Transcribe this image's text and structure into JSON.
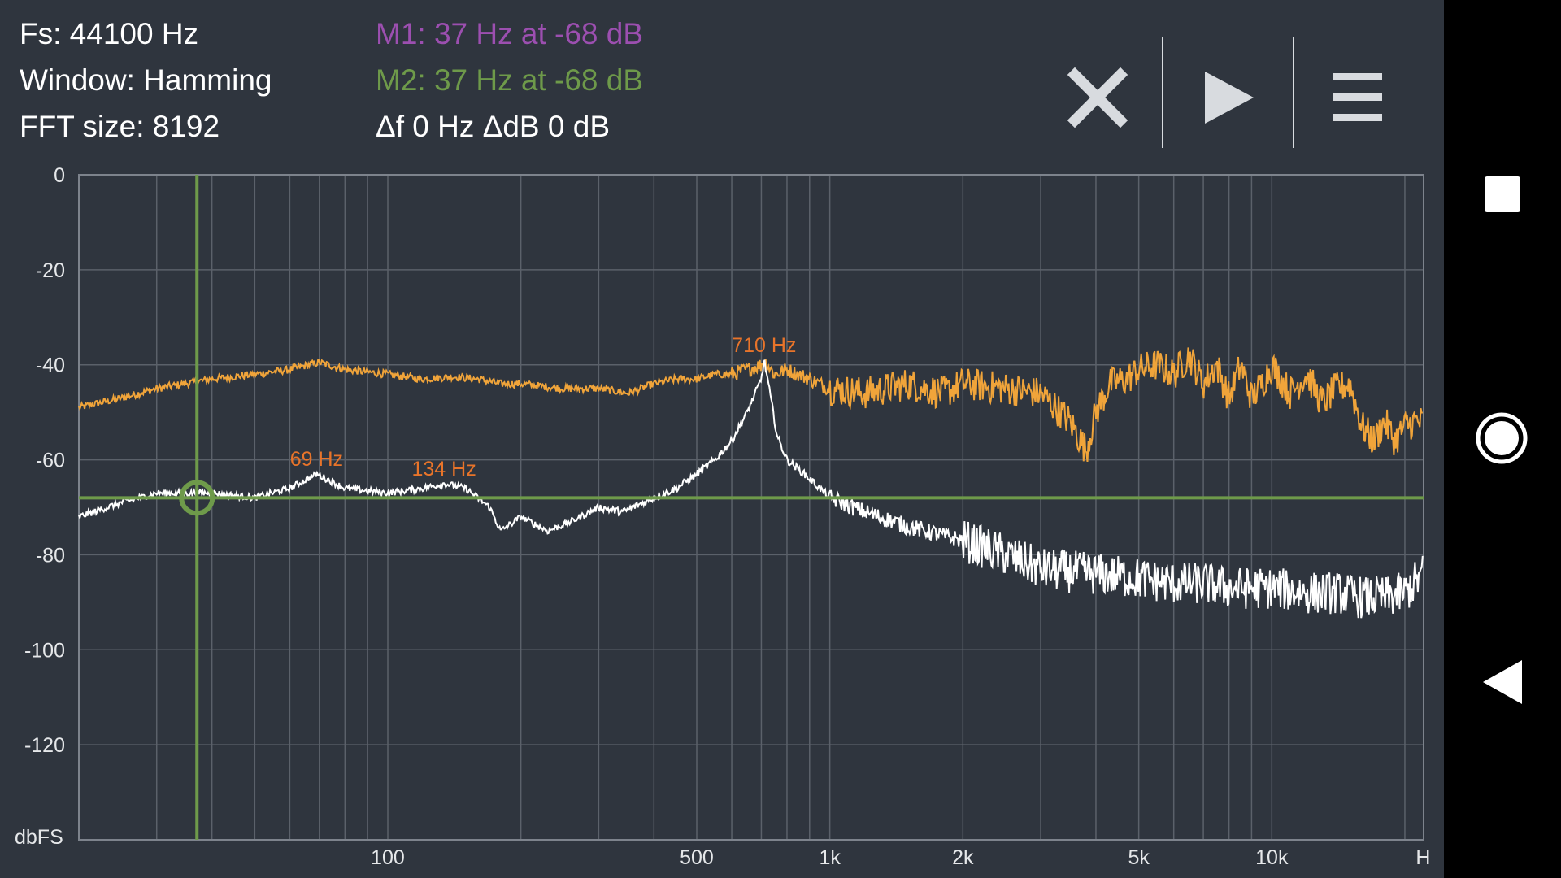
{
  "info": {
    "fs": "Fs: 44100 Hz",
    "window": "Window: Hamming",
    "fft_size": "FFT size: 8192"
  },
  "markers": {
    "m1": "M1: 37 Hz at -68 dB",
    "m2": "M2: 37 Hz at -68 dB",
    "delta": "Δf 0 Hz ΔdB 0 dB",
    "m1_color": "#9c4fb0",
    "m2_color": "#6e9a4a"
  },
  "toolbar": {
    "close_icon": "close-icon",
    "play_icon": "play-icon",
    "menu_icon": "menu-icon"
  },
  "navbar": {
    "recents_icon": "square-icon",
    "home_icon": "circle-icon",
    "back_icon": "triangle-back-icon"
  },
  "chart_data": {
    "type": "line",
    "xscale": "log",
    "xlim": [
      20,
      22050
    ],
    "ylim": [
      -140,
      0
    ],
    "ylabel": "dbFS",
    "xticks": [
      {
        "value": 100,
        "label": "100"
      },
      {
        "value": 500,
        "label": "500"
      },
      {
        "value": 1000,
        "label": "1k"
      },
      {
        "value": 2000,
        "label": "2k"
      },
      {
        "value": 5000,
        "label": "5k"
      },
      {
        "value": 10000,
        "label": "10k"
      },
      {
        "value": 22000,
        "label": "H"
      }
    ],
    "yticks": [
      {
        "value": 0,
        "label": "0"
      },
      {
        "value": -20,
        "label": "-20"
      },
      {
        "value": -40,
        "label": "-40"
      },
      {
        "value": -60,
        "label": "-60"
      },
      {
        "value": -80,
        "label": "-80"
      },
      {
        "value": -100,
        "label": "-100"
      },
      {
        "value": -120,
        "label": "-120"
      }
    ],
    "grid": true,
    "colors": {
      "series1": "#f0a43a",
      "series2": "#ffffff",
      "peak_label": "#e8742a",
      "marker": "#6e9a4a"
    },
    "series": [
      {
        "x": [
          20,
          25,
          30,
          40,
          50,
          60,
          70,
          80,
          100,
          120,
          140,
          160,
          180,
          200,
          250,
          300,
          350,
          400,
          450,
          500,
          550,
          600,
          650,
          700,
          710,
          750,
          800,
          900,
          1000,
          1200,
          1500,
          1800,
          2000,
          2500,
          3000,
          3500,
          3800,
          4000,
          4300,
          4700,
          5000,
          5500,
          6000,
          6500,
          7000,
          7500,
          8000,
          8500,
          9000,
          9500,
          10000,
          11000,
          12000,
          13000,
          14000,
          15000,
          16000,
          17000,
          18000,
          19000,
          20000,
          21000,
          22000
        ],
        "y": [
          -49,
          -47,
          -45,
          -43,
          -42,
          -41,
          -39.5,
          -41,
          -42,
          -43,
          -42.5,
          -43,
          -44,
          -44,
          -45,
          -45,
          -46,
          -44,
          -43,
          -43,
          -42,
          -42,
          -41,
          -40,
          -39,
          -42,
          -41,
          -43,
          -45,
          -46,
          -44,
          -46,
          -44,
          -45,
          -46,
          -52,
          -58,
          -50,
          -44,
          -43,
          -41,
          -40,
          -42,
          -38,
          -44,
          -40,
          -47,
          -40,
          -47,
          -44,
          -40,
          -46,
          -42,
          -48,
          -45,
          -44,
          -53,
          -56,
          -52,
          -56,
          -53,
          -52,
          -52
        ]
      },
      {
        "x": [
          20,
          25,
          30,
          40,
          50,
          60,
          69,
          80,
          100,
          120,
          134,
          150,
          170,
          180,
          200,
          230,
          260,
          300,
          340,
          400,
          450,
          500,
          550,
          600,
          650,
          700,
          710,
          720,
          760,
          800,
          850,
          900,
          1000,
          1200,
          1500,
          2000,
          2500,
          3000,
          4000,
          5000,
          6000,
          7000,
          8000,
          9000,
          10000,
          12000,
          14000,
          16000,
          18000,
          20000,
          22000
        ],
        "y": [
          -72,
          -69,
          -67,
          -67,
          -68,
          -66,
          -63,
          -66,
          -67,
          -66,
          -65,
          -66,
          -70,
          -75,
          -72,
          -75,
          -73,
          -70,
          -71,
          -68,
          -66,
          -63,
          -60,
          -56,
          -50,
          -43,
          -39,
          -42,
          -55,
          -60,
          -62,
          -64,
          -68,
          -71,
          -74,
          -77,
          -80,
          -83,
          -84,
          -85,
          -86,
          -86,
          -87,
          -87,
          -87,
          -88,
          -88,
          -89,
          -89,
          -88,
          -84
        ]
      }
    ],
    "annotations": [
      {
        "x": 69,
        "y": -63,
        "text": "69 Hz"
      },
      {
        "x": 134,
        "y": -65,
        "text": "134 Hz"
      },
      {
        "x": 710,
        "y": -39,
        "text": "710 Hz"
      }
    ],
    "marker": {
      "x": 37,
      "y": -68
    }
  }
}
